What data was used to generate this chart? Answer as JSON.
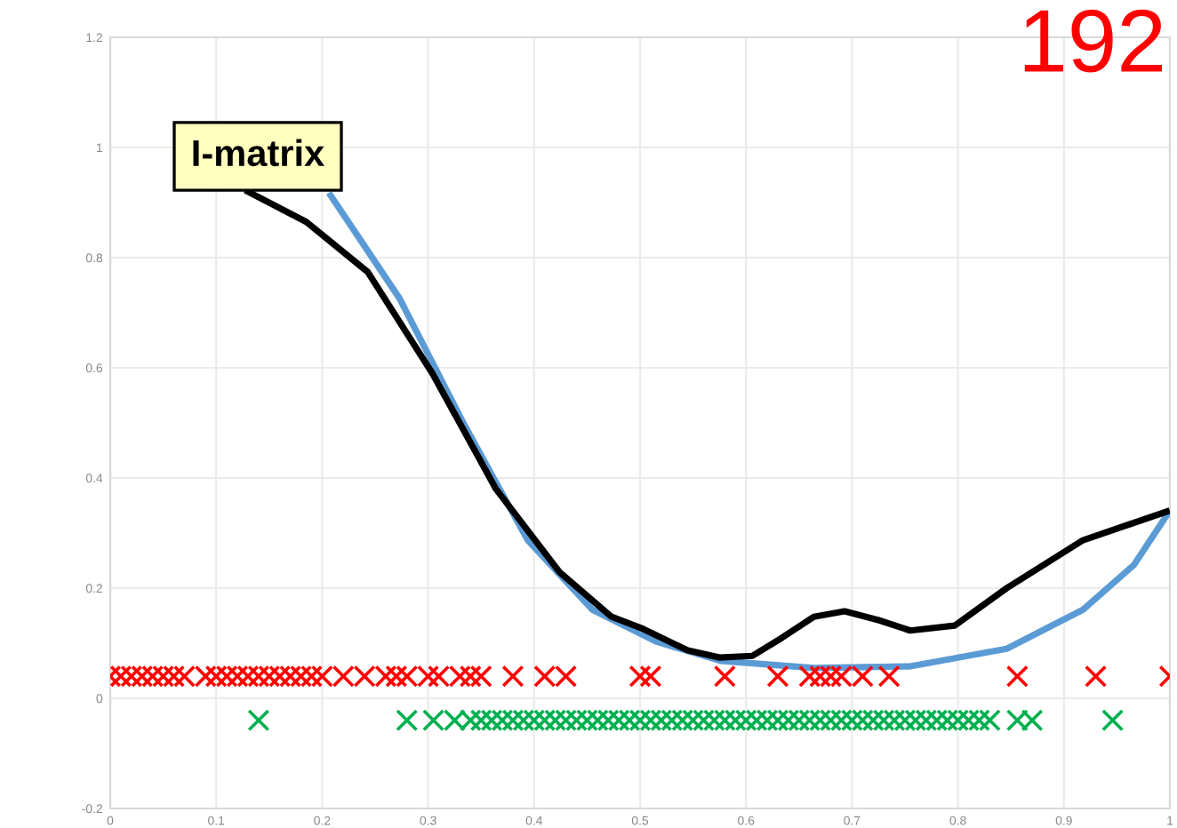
{
  "chart_data": {
    "type": "line",
    "xlim": [
      0,
      1
    ],
    "ylim": [
      -0.2,
      1.2
    ],
    "xticks": [
      0,
      0.1,
      0.2,
      0.3,
      0.4,
      0.5,
      0.6,
      0.7,
      0.8,
      0.9,
      1
    ],
    "yticks": [
      -0.2,
      0,
      0.2,
      0.4,
      0.6,
      0.8,
      1,
      1.2
    ],
    "grid": true,
    "annotations": [
      "I-matrix",
      "192"
    ],
    "series": [
      {
        "color": "#5b9bd5",
        "x": [
          0.208,
          0.273,
          0.334,
          0.394,
          0.455,
          0.515,
          0.576,
          0.664,
          0.755,
          0.846,
          0.918,
          0.966,
          0.998
        ],
        "values": [
          0.913,
          0.726,
          0.497,
          0.287,
          0.161,
          0.103,
          0.068,
          0.055,
          0.058,
          0.09,
          0.161,
          0.242,
          0.335
        ]
      },
      {
        "color": "#000000",
        "x": [
          0.13,
          0.185,
          0.243,
          0.304,
          0.364,
          0.424,
          0.473,
          0.503,
          0.545,
          0.575,
          0.606,
          0.634,
          0.664,
          0.693,
          0.725,
          0.755,
          0.797,
          0.846,
          0.918,
          0.997
        ],
        "values": [
          0.92,
          0.865,
          0.774,
          0.59,
          0.38,
          0.229,
          0.148,
          0.126,
          0.087,
          0.074,
          0.077,
          0.11,
          0.148,
          0.158,
          0.142,
          0.123,
          0.132,
          0.2,
          0.287,
          0.339
        ]
      },
      {
        "type": "scatter",
        "marker": "cross",
        "color": "#ff0000",
        "x": [
          0,
          0.01,
          0.02,
          0.03,
          0.04,
          0.05,
          0.06,
          0.07,
          0.09,
          0.1,
          0.11,
          0.12,
          0.13,
          0.14,
          0.15,
          0.16,
          0.17,
          0.18,
          0.19,
          0.2,
          0.22,
          0.24,
          0.26,
          0.27,
          0.28,
          0.3,
          0.31,
          0.33,
          0.34,
          0.35,
          0.38,
          0.41,
          0.43,
          0.5,
          0.51,
          0.58,
          0.63,
          0.66,
          0.67,
          0.68,
          0.69,
          0.71,
          0.735,
          0.856,
          0.93,
          1.0
        ],
        "values": [
          0.04,
          0.04,
          0.04,
          0.04,
          0.04,
          0.04,
          0.04,
          0.04,
          0.04,
          0.04,
          0.04,
          0.04,
          0.04,
          0.04,
          0.04,
          0.04,
          0.04,
          0.04,
          0.04,
          0.04,
          0.04,
          0.04,
          0.04,
          0.04,
          0.04,
          0.04,
          0.04,
          0.04,
          0.04,
          0.04,
          0.04,
          0.04,
          0.04,
          0.04,
          0.04,
          0.04,
          0.04,
          0.04,
          0.04,
          0.04,
          0.04,
          0.04,
          0.04,
          0.04,
          0.04,
          0.04
        ]
      },
      {
        "type": "scatter",
        "marker": "cross",
        "color": "#00b050",
        "x": [
          0.14,
          0.28,
          0.305,
          0.325,
          0.34,
          0.35,
          0.36,
          0.37,
          0.38,
          0.39,
          0.4,
          0.41,
          0.42,
          0.43,
          0.44,
          0.45,
          0.46,
          0.47,
          0.48,
          0.49,
          0.5,
          0.51,
          0.52,
          0.53,
          0.54,
          0.55,
          0.56,
          0.57,
          0.58,
          0.59,
          0.6,
          0.61,
          0.62,
          0.63,
          0.64,
          0.65,
          0.66,
          0.67,
          0.68,
          0.69,
          0.7,
          0.71,
          0.72,
          0.73,
          0.74,
          0.75,
          0.76,
          0.77,
          0.78,
          0.79,
          0.8,
          0.81,
          0.82,
          0.83,
          0.856,
          0.87,
          0.946
        ],
        "values": [
          -0.04,
          -0.04,
          -0.04,
          -0.04,
          -0.04,
          -0.04,
          -0.04,
          -0.04,
          -0.04,
          -0.04,
          -0.04,
          -0.04,
          -0.04,
          -0.04,
          -0.04,
          -0.04,
          -0.04,
          -0.04,
          -0.04,
          -0.04,
          -0.04,
          -0.04,
          -0.04,
          -0.04,
          -0.04,
          -0.04,
          -0.04,
          -0.04,
          -0.04,
          -0.04,
          -0.04,
          -0.04,
          -0.04,
          -0.04,
          -0.04,
          -0.04,
          -0.04,
          -0.04,
          -0.04,
          -0.04,
          -0.04,
          -0.04,
          -0.04,
          -0.04,
          -0.04,
          -0.04,
          -0.04,
          -0.04,
          -0.04,
          -0.04,
          -0.04,
          -0.04,
          -0.04,
          -0.04,
          -0.04,
          -0.04,
          -0.04
        ]
      }
    ]
  }
}
